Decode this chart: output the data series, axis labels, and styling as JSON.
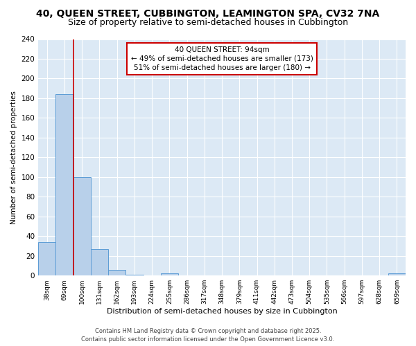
{
  "title_line1": "40, QUEEN STREET, CUBBINGTON, LEAMINGTON SPA, CV32 7NA",
  "title_line2": "Size of property relative to semi-detached houses in Cubbington",
  "categories": [
    "38sqm",
    "69sqm",
    "100sqm",
    "131sqm",
    "162sqm",
    "193sqm",
    "224sqm",
    "255sqm",
    "286sqm",
    "317sqm",
    "348sqm",
    "379sqm",
    "411sqm",
    "442sqm",
    "473sqm",
    "504sqm",
    "535sqm",
    "566sqm",
    "597sqm",
    "628sqm",
    "659sqm"
  ],
  "values": [
    34,
    184,
    100,
    27,
    6,
    1,
    0,
    2,
    0,
    0,
    0,
    0,
    0,
    0,
    0,
    0,
    0,
    0,
    0,
    0,
    2
  ],
  "bar_color": "#b8d0ea",
  "bar_edge_color": "#5b9bd5",
  "red_line_x": 1.5,
  "ylabel": "Number of semi-detached properties",
  "xlabel": "Distribution of semi-detached houses by size in Cubbington",
  "ylim": [
    0,
    240
  ],
  "yticks": [
    0,
    20,
    40,
    60,
    80,
    100,
    120,
    140,
    160,
    180,
    200,
    220,
    240
  ],
  "annotation_title": "40 QUEEN STREET: 94sqm",
  "annotation_line1": "← 49% of semi-detached houses are smaller (173)",
  "annotation_line2": "51% of semi-detached houses are larger (180) →",
  "annotation_box_facecolor": "#ffffff",
  "annotation_box_edgecolor": "#cc0000",
  "footer_line1": "Contains HM Land Registry data © Crown copyright and database right 2025.",
  "footer_line2": "Contains public sector information licensed under the Open Government Licence v3.0.",
  "figure_facecolor": "#ffffff",
  "plot_facecolor": "#dce9f5",
  "grid_color": "#ffffff",
  "title_fontsize": 10,
  "subtitle_fontsize": 9
}
